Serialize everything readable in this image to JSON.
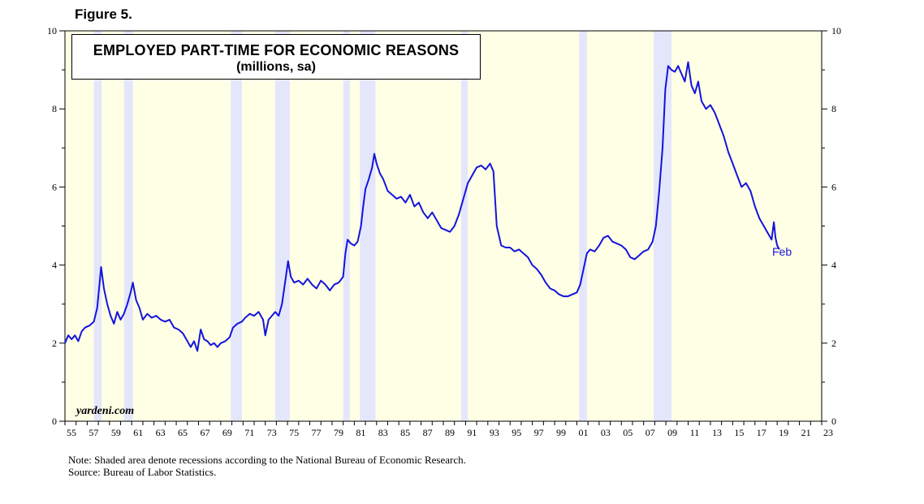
{
  "figure_label": "Figure 5.",
  "chart_data": {
    "type": "line",
    "title": "EMPLOYED PART-TIME FOR ECONOMIC REASONS",
    "subtitle": "(millions, sa)",
    "xlabel": "",
    "ylabel": "",
    "xlim": [
      1955,
      2023
    ],
    "ylim": [
      0,
      10
    ],
    "x_tick_labels": [
      "55",
      "57",
      "59",
      "61",
      "63",
      "65",
      "67",
      "69",
      "71",
      "73",
      "75",
      "77",
      "79",
      "81",
      "83",
      "85",
      "87",
      "89",
      "91",
      "93",
      "95",
      "97",
      "99",
      "01",
      "03",
      "05",
      "07",
      "09",
      "11",
      "13",
      "15",
      "17",
      "19",
      "21",
      "23"
    ],
    "y_tick_labels_left": [
      "0",
      "2",
      "4",
      "6",
      "8",
      "10"
    ],
    "y_tick_labels_right": [
      "0",
      "2",
      "4",
      "6",
      "8",
      "10"
    ],
    "grid": false,
    "background_color": "#ffffe6",
    "recession_color": "#e4e6fc",
    "line_color": "#1414dc",
    "recessions": [
      [
        1957.6,
        1958.3
      ],
      [
        1960.3,
        1961.1
      ],
      [
        1969.9,
        1970.9
      ],
      [
        1973.9,
        1975.2
      ],
      [
        1980.0,
        1980.6
      ],
      [
        1981.5,
        1982.9
      ],
      [
        1990.6,
        1991.2
      ],
      [
        2001.2,
        2001.9
      ],
      [
        2007.9,
        2009.5
      ]
    ],
    "series": [
      {
        "values": [
          [
            1955.0,
            2.0
          ],
          [
            1955.3,
            2.2
          ],
          [
            1955.6,
            2.1
          ],
          [
            1955.9,
            2.2
          ],
          [
            1956.2,
            2.05
          ],
          [
            1956.5,
            2.3
          ],
          [
            1956.8,
            2.4
          ],
          [
            1957.2,
            2.45
          ],
          [
            1957.6,
            2.55
          ],
          [
            1957.9,
            2.9
          ],
          [
            1958.1,
            3.5
          ],
          [
            1958.25,
            3.95
          ],
          [
            1958.5,
            3.4
          ],
          [
            1958.8,
            3.0
          ],
          [
            1959.1,
            2.7
          ],
          [
            1959.4,
            2.5
          ],
          [
            1959.7,
            2.8
          ],
          [
            1960.0,
            2.6
          ],
          [
            1960.3,
            2.75
          ],
          [
            1960.6,
            3.0
          ],
          [
            1960.9,
            3.3
          ],
          [
            1961.1,
            3.55
          ],
          [
            1961.4,
            3.1
          ],
          [
            1961.7,
            2.9
          ],
          [
            1962.0,
            2.6
          ],
          [
            1962.4,
            2.75
          ],
          [
            1962.8,
            2.65
          ],
          [
            1963.2,
            2.7
          ],
          [
            1963.6,
            2.6
          ],
          [
            1964.0,
            2.55
          ],
          [
            1964.4,
            2.6
          ],
          [
            1964.8,
            2.4
          ],
          [
            1965.2,
            2.35
          ],
          [
            1965.6,
            2.25
          ],
          [
            1966.0,
            2.05
          ],
          [
            1966.3,
            1.9
          ],
          [
            1966.6,
            2.05
          ],
          [
            1966.9,
            1.8
          ],
          [
            1967.2,
            2.35
          ],
          [
            1967.5,
            2.1
          ],
          [
            1967.8,
            2.05
          ],
          [
            1968.1,
            1.95
          ],
          [
            1968.4,
            2.0
          ],
          [
            1968.7,
            1.9
          ],
          [
            1969.0,
            2.0
          ],
          [
            1969.4,
            2.05
          ],
          [
            1969.8,
            2.15
          ],
          [
            1970.1,
            2.4
          ],
          [
            1970.5,
            2.5
          ],
          [
            1970.9,
            2.55
          ],
          [
            1971.2,
            2.65
          ],
          [
            1971.6,
            2.75
          ],
          [
            1972.0,
            2.7
          ],
          [
            1972.4,
            2.8
          ],
          [
            1972.8,
            2.6
          ],
          [
            1973.0,
            2.2
          ],
          [
            1973.3,
            2.6
          ],
          [
            1973.6,
            2.7
          ],
          [
            1973.9,
            2.8
          ],
          [
            1974.2,
            2.7
          ],
          [
            1974.5,
            3.0
          ],
          [
            1974.8,
            3.6
          ],
          [
            1975.05,
            4.1
          ],
          [
            1975.3,
            3.7
          ],
          [
            1975.6,
            3.55
          ],
          [
            1976.0,
            3.6
          ],
          [
            1976.4,
            3.5
          ],
          [
            1976.8,
            3.65
          ],
          [
            1977.2,
            3.5
          ],
          [
            1977.6,
            3.4
          ],
          [
            1978.0,
            3.6
          ],
          [
            1978.4,
            3.5
          ],
          [
            1978.8,
            3.35
          ],
          [
            1979.2,
            3.5
          ],
          [
            1979.6,
            3.55
          ],
          [
            1980.0,
            3.7
          ],
          [
            1980.2,
            4.3
          ],
          [
            1980.4,
            4.65
          ],
          [
            1980.7,
            4.55
          ],
          [
            1981.0,
            4.5
          ],
          [
            1981.3,
            4.6
          ],
          [
            1981.6,
            5.0
          ],
          [
            1981.8,
            5.5
          ],
          [
            1982.0,
            5.95
          ],
          [
            1982.3,
            6.2
          ],
          [
            1982.6,
            6.5
          ],
          [
            1982.8,
            6.85
          ],
          [
            1983.0,
            6.6
          ],
          [
            1983.3,
            6.35
          ],
          [
            1983.6,
            6.2
          ],
          [
            1984.0,
            5.9
          ],
          [
            1984.4,
            5.8
          ],
          [
            1984.8,
            5.7
          ],
          [
            1985.2,
            5.75
          ],
          [
            1985.6,
            5.6
          ],
          [
            1986.0,
            5.8
          ],
          [
            1986.4,
            5.5
          ],
          [
            1986.8,
            5.6
          ],
          [
            1987.2,
            5.35
          ],
          [
            1987.6,
            5.2
          ],
          [
            1988.0,
            5.35
          ],
          [
            1988.4,
            5.15
          ],
          [
            1988.8,
            4.95
          ],
          [
            1989.2,
            4.9
          ],
          [
            1989.6,
            4.85
          ],
          [
            1990.0,
            5.0
          ],
          [
            1990.4,
            5.3
          ],
          [
            1990.8,
            5.7
          ],
          [
            1991.2,
            6.1
          ],
          [
            1991.6,
            6.3
          ],
          [
            1992.0,
            6.5
          ],
          [
            1992.4,
            6.55
          ],
          [
            1992.8,
            6.45
          ],
          [
            1993.2,
            6.6
          ],
          [
            1993.5,
            6.4
          ],
          [
            1993.8,
            5.0
          ],
          [
            1994.2,
            4.5
          ],
          [
            1994.6,
            4.45
          ],
          [
            1995.0,
            4.45
          ],
          [
            1995.4,
            4.35
          ],
          [
            1995.8,
            4.4
          ],
          [
            1996.2,
            4.3
          ],
          [
            1996.6,
            4.2
          ],
          [
            1997.0,
            4.0
          ],
          [
            1997.4,
            3.9
          ],
          [
            1997.8,
            3.75
          ],
          [
            1998.2,
            3.55
          ],
          [
            1998.6,
            3.4
          ],
          [
            1999.0,
            3.35
          ],
          [
            1999.4,
            3.25
          ],
          [
            1999.8,
            3.2
          ],
          [
            2000.2,
            3.2
          ],
          [
            2000.6,
            3.25
          ],
          [
            2001.0,
            3.3
          ],
          [
            2001.3,
            3.5
          ],
          [
            2001.6,
            3.9
          ],
          [
            2001.9,
            4.3
          ],
          [
            2002.2,
            4.4
          ],
          [
            2002.6,
            4.35
          ],
          [
            2003.0,
            4.5
          ],
          [
            2003.4,
            4.7
          ],
          [
            2003.8,
            4.75
          ],
          [
            2004.2,
            4.6
          ],
          [
            2004.6,
            4.55
          ],
          [
            2005.0,
            4.5
          ],
          [
            2005.4,
            4.4
          ],
          [
            2005.8,
            4.2
          ],
          [
            2006.2,
            4.15
          ],
          [
            2006.6,
            4.25
          ],
          [
            2007.0,
            4.35
          ],
          [
            2007.4,
            4.4
          ],
          [
            2007.8,
            4.6
          ],
          [
            2008.1,
            5.0
          ],
          [
            2008.4,
            5.9
          ],
          [
            2008.7,
            7.0
          ],
          [
            2008.95,
            8.5
          ],
          [
            2009.2,
            9.1
          ],
          [
            2009.5,
            9.0
          ],
          [
            2009.8,
            8.95
          ],
          [
            2010.1,
            9.1
          ],
          [
            2010.4,
            8.9
          ],
          [
            2010.7,
            8.7
          ],
          [
            2011.0,
            9.2
          ],
          [
            2011.3,
            8.6
          ],
          [
            2011.6,
            8.4
          ],
          [
            2011.9,
            8.7
          ],
          [
            2012.2,
            8.2
          ],
          [
            2012.6,
            8.0
          ],
          [
            2013.0,
            8.1
          ],
          [
            2013.4,
            7.9
          ],
          [
            2013.8,
            7.6
          ],
          [
            2014.2,
            7.3
          ],
          [
            2014.6,
            6.9
          ],
          [
            2015.0,
            6.6
          ],
          [
            2015.4,
            6.3
          ],
          [
            2015.8,
            6.0
          ],
          [
            2016.2,
            6.1
          ],
          [
            2016.6,
            5.9
          ],
          [
            2017.0,
            5.5
          ],
          [
            2017.4,
            5.2
          ],
          [
            2017.8,
            5.0
          ],
          [
            2018.2,
            4.8
          ],
          [
            2018.5,
            4.65
          ],
          [
            2018.7,
            5.1
          ],
          [
            2018.85,
            4.7
          ],
          [
            2019.0,
            4.5
          ],
          [
            2019.2,
            4.4
          ]
        ]
      }
    ],
    "end_label": "Feb",
    "watermark": "yardeni.com"
  },
  "notes": [
    "Note: Shaded area denote recessions according to the National Bureau of Economic Research.",
    "Source: Bureau of Labor Statistics."
  ]
}
